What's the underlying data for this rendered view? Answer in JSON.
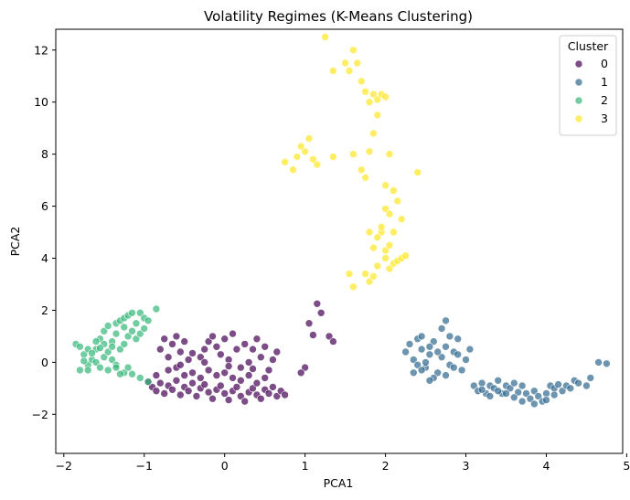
{
  "chart_data": {
    "type": "scatter",
    "title": "Volatility Regimes (K-Means Clustering)",
    "xlabel": "PCA1",
    "ylabel": "PCA2",
    "xlim": [
      -2.1,
      4.95
    ],
    "ylim": [
      -3.5,
      12.8
    ],
    "x_ticks": [
      -2,
      -1,
      0,
      1,
      2,
      3,
      4,
      5
    ],
    "y_ticks": [
      -2,
      0,
      2,
      4,
      6,
      8,
      10,
      12
    ],
    "grid": false,
    "legend": {
      "title": "Cluster",
      "placement": "top-right"
    },
    "series": [
      {
        "name": "0",
        "color": "#440154",
        "points": [
          [
            -0.95,
            -0.75
          ],
          [
            -0.9,
            -0.95
          ],
          [
            -0.85,
            -1.1
          ],
          [
            -0.8,
            -0.8
          ],
          [
            -0.75,
            -1.2
          ],
          [
            -0.7,
            -0.9
          ],
          [
            -0.65,
            -1.05
          ],
          [
            -0.6,
            -0.7
          ],
          [
            -0.55,
            -1.25
          ],
          [
            -0.5,
            -0.95
          ],
          [
            -0.45,
            -1.1
          ],
          [
            -0.4,
            -0.8
          ],
          [
            -0.35,
            -1.3
          ],
          [
            -0.3,
            -1.0
          ],
          [
            -0.25,
            -0.85
          ],
          [
            -0.2,
            -1.15
          ],
          [
            -0.15,
            -1.4
          ],
          [
            -0.1,
            -1.05
          ],
          [
            -0.05,
            -0.9
          ],
          [
            0.0,
            -1.2
          ],
          [
            0.05,
            -1.45
          ],
          [
            0.1,
            -1.1
          ],
          [
            0.15,
            -0.95
          ],
          [
            0.2,
            -1.3
          ],
          [
            0.25,
            -1.5
          ],
          [
            0.3,
            -1.15
          ],
          [
            0.35,
            -1.0
          ],
          [
            0.4,
            -1.25
          ],
          [
            0.45,
            -1.4
          ],
          [
            0.5,
            -1.05
          ],
          [
            0.55,
            -1.2
          ],
          [
            0.6,
            -0.95
          ],
          [
            0.65,
            -1.3
          ],
          [
            0.7,
            -1.1
          ],
          [
            0.75,
            -1.25
          ],
          [
            -0.8,
            0.5
          ],
          [
            -0.75,
            0.9
          ],
          [
            -0.7,
            0.2
          ],
          [
            -0.65,
            0.7
          ],
          [
            -0.6,
            1.0
          ],
          [
            -0.55,
            0.4
          ],
          [
            -0.5,
            0.8
          ],
          [
            -0.45,
            0.1
          ],
          [
            -0.4,
            0.35
          ],
          [
            -0.3,
            0.2
          ],
          [
            -0.25,
            0.5
          ],
          [
            -0.2,
            0.8
          ],
          [
            -0.15,
            1.0
          ],
          [
            -0.1,
            0.6
          ],
          [
            -0.05,
            0.3
          ],
          [
            0.0,
            0.9
          ],
          [
            0.05,
            0.1
          ],
          [
            0.1,
            1.1
          ],
          [
            0.15,
            0.5
          ],
          [
            0.2,
            -0.2
          ],
          [
            0.25,
            0.7
          ],
          [
            0.3,
            0.0
          ],
          [
            0.35,
            0.5
          ],
          [
            0.4,
            0.9
          ],
          [
            0.45,
            0.2
          ],
          [
            0.5,
            0.6
          ],
          [
            0.55,
            -0.3
          ],
          [
            0.6,
            0.1
          ],
          [
            0.65,
            0.4
          ],
          [
            -0.7,
            -0.3
          ],
          [
            -0.6,
            -0.2
          ],
          [
            -0.5,
            -0.5
          ],
          [
            -0.4,
            -0.4
          ],
          [
            -0.3,
            -0.6
          ],
          [
            -0.2,
            -0.3
          ],
          [
            -0.1,
            -0.5
          ],
          [
            0.0,
            -0.4
          ],
          [
            0.1,
            -0.6
          ],
          [
            0.2,
            -0.7
          ],
          [
            0.3,
            -0.5
          ],
          [
            0.4,
            -0.8
          ],
          [
            0.5,
            -0.6
          ],
          [
            -0.85,
            -0.5
          ],
          [
            -0.55,
            -0.1
          ],
          [
            -0.25,
            0.0
          ],
          [
            0.05,
            -0.15
          ],
          [
            0.35,
            -0.25
          ],
          [
            1.05,
            1.5
          ],
          [
            1.1,
            1.05
          ],
          [
            1.15,
            2.25
          ],
          [
            1.2,
            1.9
          ],
          [
            1.3,
            1.0
          ],
          [
            1.35,
            0.8
          ],
          [
            1.0,
            -0.2
          ],
          [
            0.95,
            -0.4
          ]
        ]
      },
      {
        "name": "1",
        "color": "#31688e",
        "points": [
          [
            2.25,
            0.4
          ],
          [
            2.3,
            0.7
          ],
          [
            2.35,
            0.1
          ],
          [
            2.4,
            0.9
          ],
          [
            2.45,
            0.5
          ],
          [
            2.5,
            -0.2
          ],
          [
            2.55,
            0.3
          ],
          [
            2.6,
            0.8
          ],
          [
            2.65,
            -0.4
          ],
          [
            2.7,
            0.2
          ],
          [
            2.75,
            0.6
          ],
          [
            2.8,
            -0.1
          ],
          [
            2.85,
            0.4
          ],
          [
            2.9,
            0.9
          ],
          [
            2.95,
            -0.3
          ],
          [
            3.0,
            0.1
          ],
          [
            3.05,
            0.5
          ],
          [
            2.4,
            -0.1
          ],
          [
            2.5,
            0.0
          ],
          [
            2.6,
            -0.6
          ],
          [
            2.7,
            1.3
          ],
          [
            2.75,
            1.6
          ],
          [
            2.8,
            1.0
          ],
          [
            2.9,
            0.3
          ],
          [
            2.35,
            -0.4
          ],
          [
            2.45,
            -0.3
          ],
          [
            2.55,
            -0.7
          ],
          [
            2.65,
            0.4
          ],
          [
            2.75,
            -0.5
          ],
          [
            2.85,
            -0.2
          ],
          [
            2.45,
            1.0
          ],
          [
            2.55,
            0.6
          ],
          [
            3.1,
            -0.9
          ],
          [
            3.15,
            -1.1
          ],
          [
            3.2,
            -0.8
          ],
          [
            3.25,
            -1.2
          ],
          [
            3.3,
            -0.9
          ],
          [
            3.35,
            -1.0
          ],
          [
            3.4,
            -0.7
          ],
          [
            3.45,
            -1.2
          ],
          [
            3.5,
            -0.9
          ],
          [
            3.55,
            -1.0
          ],
          [
            3.6,
            -0.8
          ],
          [
            3.65,
            -1.15
          ],
          [
            3.7,
            -0.9
          ],
          [
            3.75,
            -1.2
          ],
          [
            3.8,
            -1.4
          ],
          [
            3.85,
            -1.1
          ],
          [
            3.9,
            -1.3
          ],
          [
            3.95,
            -1.5
          ],
          [
            4.0,
            -1.2
          ],
          [
            4.05,
            -0.9
          ],
          [
            4.1,
            -1.0
          ],
          [
            4.15,
            -0.85
          ],
          [
            4.2,
            -1.1
          ],
          [
            4.25,
            -0.9
          ],
          [
            4.3,
            -1.0
          ],
          [
            4.35,
            -0.7
          ],
          [
            4.4,
            -0.8
          ],
          [
            4.5,
            -0.9
          ],
          [
            4.55,
            -0.6
          ],
          [
            4.65,
            0.0
          ],
          [
            4.75,
            -0.05
          ],
          [
            3.3,
            -1.3
          ],
          [
            3.5,
            -1.2
          ],
          [
            3.6,
            -1.35
          ],
          [
            3.7,
            -1.5
          ],
          [
            3.85,
            -1.6
          ],
          [
            4.0,
            -1.45
          ],
          [
            4.1,
            -1.25
          ],
          [
            3.2,
            -1.05
          ],
          [
            3.4,
            -1.1
          ]
        ]
      },
      {
        "name": "2",
        "color": "#35b779",
        "points": [
          [
            -1.85,
            0.7
          ],
          [
            -1.8,
            0.6
          ],
          [
            -1.75,
            0.3
          ],
          [
            -1.8,
            -0.3
          ],
          [
            -1.7,
            -0.1
          ],
          [
            -1.65,
            0.1
          ],
          [
            -1.6,
            0.5
          ],
          [
            -1.55,
            0.9
          ],
          [
            -1.5,
            1.2
          ],
          [
            -1.45,
            1.4
          ],
          [
            -1.4,
            0.8
          ],
          [
            -1.35,
            1.5
          ],
          [
            -1.3,
            1.6
          ],
          [
            -1.25,
            1.7
          ],
          [
            -1.2,
            1.8
          ],
          [
            -1.15,
            1.9
          ],
          [
            -1.1,
            1.5
          ],
          [
            -1.05,
            1.9
          ],
          [
            -1.0,
            1.7
          ],
          [
            -0.95,
            1.6
          ],
          [
            -0.85,
            2.05
          ],
          [
            -1.7,
            0.5
          ],
          [
            -1.6,
            0.0
          ],
          [
            -1.5,
            0.2
          ],
          [
            -1.45,
            0.4
          ],
          [
            -1.4,
            0.1
          ],
          [
            -1.35,
            -0.1
          ],
          [
            -1.3,
            0.5
          ],
          [
            -1.25,
            0.7
          ],
          [
            -1.2,
            1.0
          ],
          [
            -1.15,
            1.2
          ],
          [
            -1.1,
            0.9
          ],
          [
            -1.05,
            1.1
          ],
          [
            -1.0,
            1.3
          ],
          [
            -1.55,
            -0.2
          ],
          [
            -1.45,
            -0.3
          ],
          [
            -1.35,
            -0.2
          ],
          [
            -1.25,
            -0.4
          ],
          [
            -1.15,
            -0.45
          ],
          [
            -1.05,
            -0.6
          ],
          [
            -0.95,
            -0.75
          ],
          [
            -1.2,
            -0.2
          ],
          [
            -1.3,
            -0.45
          ],
          [
            -1.4,
            0.6
          ],
          [
            -1.5,
            0.7
          ],
          [
            -1.65,
            0.35
          ],
          [
            -1.75,
            0.05
          ],
          [
            -1.55,
            0.55
          ],
          [
            -1.25,
            1.35
          ],
          [
            -1.35,
            1.1
          ],
          [
            -1.6,
            0.8
          ],
          [
            -1.7,
            -0.3
          ]
        ]
      },
      {
        "name": "3",
        "color": "#fde725",
        "points": [
          [
            1.35,
            11.2
          ],
          [
            1.5,
            11.5
          ],
          [
            1.55,
            11.2
          ],
          [
            1.6,
            12.0
          ],
          [
            1.65,
            11.5
          ],
          [
            1.25,
            12.5
          ],
          [
            1.7,
            10.8
          ],
          [
            1.75,
            10.4
          ],
          [
            1.8,
            10.0
          ],
          [
            1.85,
            10.3
          ],
          [
            1.9,
            10.1
          ],
          [
            1.95,
            10.3
          ],
          [
            2.0,
            10.2
          ],
          [
            1.9,
            9.5
          ],
          [
            1.85,
            8.8
          ],
          [
            1.8,
            8.1
          ],
          [
            1.6,
            8.0
          ],
          [
            1.35,
            7.9
          ],
          [
            1.05,
            8.6
          ],
          [
            1.0,
            8.1
          ],
          [
            0.95,
            8.3
          ],
          [
            0.9,
            7.9
          ],
          [
            1.1,
            7.8
          ],
          [
            1.15,
            7.6
          ],
          [
            0.75,
            7.7
          ],
          [
            0.85,
            7.4
          ],
          [
            1.7,
            7.4
          ],
          [
            1.75,
            7.1
          ],
          [
            2.0,
            6.8
          ],
          [
            2.05,
            8.0
          ],
          [
            2.1,
            6.6
          ],
          [
            2.15,
            6.2
          ],
          [
            2.0,
            5.9
          ],
          [
            2.2,
            5.5
          ],
          [
            2.05,
            5.7
          ],
          [
            1.95,
            5.0
          ],
          [
            2.0,
            4.3
          ],
          [
            1.9,
            4.8
          ],
          [
            1.85,
            4.4
          ],
          [
            1.8,
            5.0
          ],
          [
            1.75,
            3.4
          ],
          [
            1.8,
            3.1
          ],
          [
            1.85,
            3.3
          ],
          [
            2.0,
            4.0
          ],
          [
            2.05,
            3.6
          ],
          [
            2.1,
            3.8
          ],
          [
            2.15,
            3.9
          ],
          [
            2.2,
            4.0
          ],
          [
            2.25,
            4.1
          ],
          [
            1.6,
            2.9
          ],
          [
            1.55,
            3.4
          ],
          [
            2.4,
            7.3
          ],
          [
            1.9,
            3.7
          ],
          [
            2.05,
            4.5
          ],
          [
            1.95,
            5.2
          ],
          [
            2.1,
            5.0
          ]
        ]
      }
    ]
  }
}
